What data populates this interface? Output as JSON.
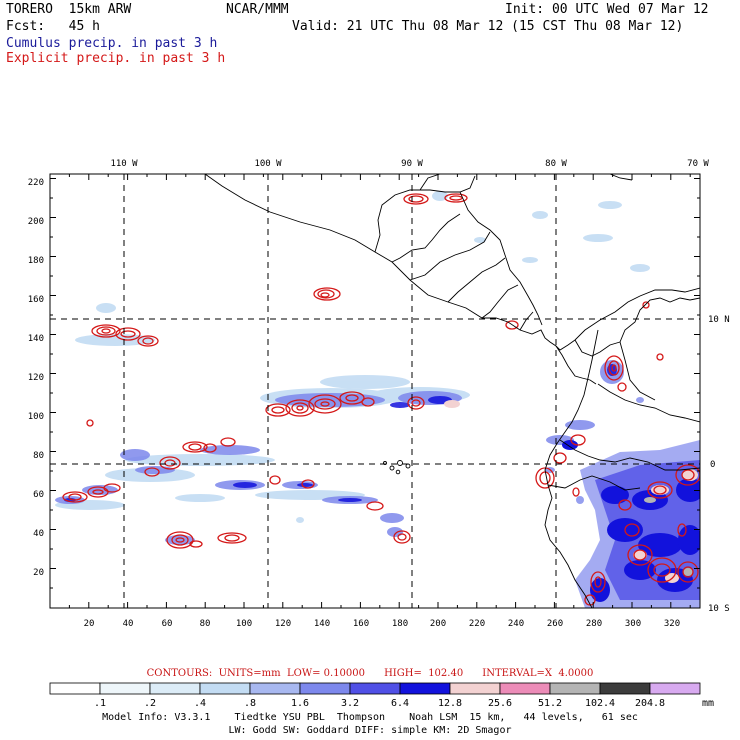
{
  "header": {
    "model": "TORERO  15km ARW",
    "org": "NCAR/MMM",
    "init": "Init: 00 UTC Wed 07 Mar 12",
    "fcst": "Fcst:   45 h",
    "valid": "Valid: 21 UTC Thu 08 Mar 12 (15 CST Thu 08 Mar 12)",
    "field_cumulus": "Cumulus precip. in past 3 h",
    "field_explicit": "Explicit precip. in past 3 h"
  },
  "colors": {
    "cumulus_title": "#1b1b9a",
    "explicit_title": "#d41818",
    "contour": "#d41818"
  },
  "axes": {
    "x_ticks": [
      "20",
      "40",
      "60",
      "80",
      "100",
      "120",
      "140",
      "160",
      "180",
      "200",
      "220",
      "240",
      "260",
      "280",
      "300",
      "320"
    ],
    "y_ticks": [
      "20",
      "40",
      "60",
      "80",
      "100",
      "120",
      "140",
      "160",
      "180",
      "200",
      "220"
    ],
    "lon_labels": [
      "110 W",
      "100 W",
      "90 W",
      "80 W",
      "70 W"
    ],
    "lat_labels": [
      "10 N",
      "0",
      "10 S"
    ]
  },
  "contour_info": {
    "text": "CONTOURS:  UNITS=mm  LOW= 0.10000      HIGH=  102.40      INTERVAL=X  4.0000"
  },
  "colorbar": {
    "labels": [
      ".1",
      ".2",
      ".4",
      ".8",
      "1.6",
      "3.2",
      "6.4",
      "12.8",
      "25.6",
      "51.2",
      "102.4",
      "204.8"
    ],
    "units": "mm",
    "colors": [
      "#ffffff",
      "#eef6fa",
      "#dcecf7",
      "#c3dcf3",
      "#a8b8f0",
      "#7d88ec",
      "#5050e6",
      "#1212dc",
      "#f3d2d2",
      "#ec8cb8",
      "#b4b4b4",
      "#3c3c3c",
      "#d8aaf0"
    ]
  },
  "model_info": {
    "line1": "Model Info: V3.3.1    Tiedtke YSU PBL  Thompson    Noah LSM  15 km,   44 levels,   61 sec",
    "line2": "LW: Godd SW: Goddard DIFF: simple KM: 2D Smagor"
  }
}
